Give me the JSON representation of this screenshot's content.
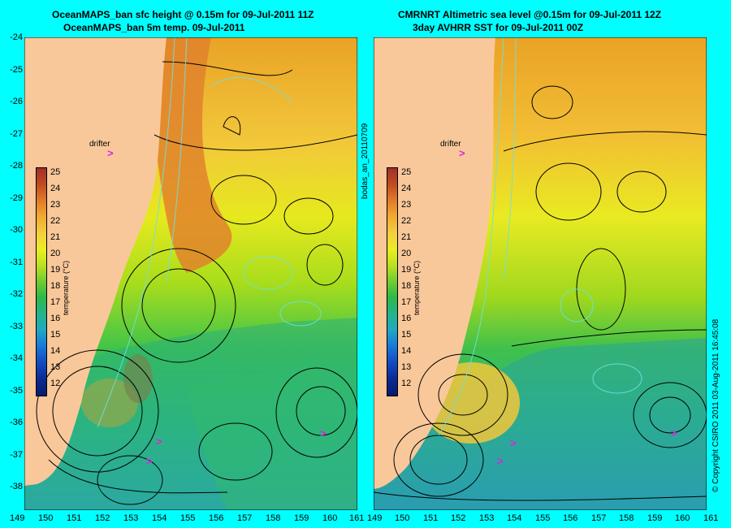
{
  "titles": {
    "left_line1": "OceanMAPS_ban sfc height @ 0.15m for 09-Jul-2011 11Z",
    "left_line2": "OceanMAPS_ban 5m temp. 09-Jul-2011",
    "right_line1": "CMRNRT Altimetric sea level  @0.15m  for 09-Jul-2011 12Z",
    "right_line2": "3day AVHRR SST for 09-Jul-2011 00Z"
  },
  "y_ticks": [
    "-24",
    "-25",
    "-26",
    "-27",
    "-28",
    "-29",
    "-30",
    "-31",
    "-32",
    "-33",
    "-34",
    "-35",
    "-36",
    "-37",
    "-38"
  ],
  "x_ticks_left": [
    "149",
    "150",
    "151",
    "152",
    "153",
    "154",
    "155",
    "156",
    "157",
    "158",
    "159",
    "160",
    "161"
  ],
  "x_ticks_right": [
    "149",
    "150",
    "151",
    "152",
    "153",
    "154",
    "155",
    "156",
    "157",
    "158",
    "159",
    "160",
    "161"
  ],
  "legend": {
    "title": "temperature (°C)",
    "values": [
      "25",
      "24",
      "23",
      "22",
      "21",
      "20",
      "19",
      "18",
      "17",
      "16",
      "15",
      "14",
      "13",
      "12"
    ]
  },
  "drifter_label": "drifter",
  "drifter_marker": ">",
  "side_label_middle": "bodas_an_20110709",
  "side_label_right": "© Copyright CSIRO 2011  03-Aug-2011 16:45:08",
  "colors": {
    "background": "#00ffff",
    "land": "#f9c89a",
    "drifter": "#e020e0"
  }
}
